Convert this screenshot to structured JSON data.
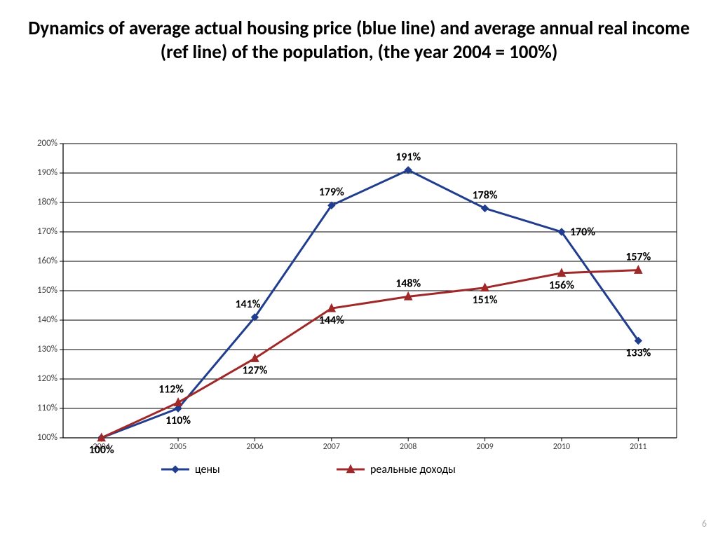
{
  "title": "Dynamics of average actual housing price (blue line) and average annual real income (ref line) of the population, (the year 2004 = 100%)",
  "page_number": "6",
  "chart": {
    "type": "line",
    "background_color": "#ffffff",
    "grid_color": "#000000",
    "axis_color": "#000000",
    "font_family": "Calibri, Arial, sans-serif",
    "title_fontsize": 27,
    "label_fontsize": 16,
    "tick_fontsize": 13,
    "xtick_fontsize": 12,
    "ylim": [
      100,
      200
    ],
    "ytick_step": 10,
    "y_format_suffix": "%",
    "ytick_labels": [
      "100%",
      "110%",
      "120%",
      "130%",
      "140%",
      "150%",
      "160%",
      "170%",
      "180%",
      "190%",
      "200%"
    ],
    "categories": [
      "2004",
      "2005",
      "2006",
      "2007",
      "2008",
      "2009",
      "2010",
      "2011"
    ],
    "series": [
      {
        "name": "цены",
        "color": "#203d8e",
        "line_width": 3,
        "marker": "diamond",
        "marker_size": 10,
        "values": [
          100,
          110,
          141,
          179,
          191,
          178,
          170,
          133
        ],
        "labels": [
          "100%",
          "110%",
          "141%",
          "179%",
          "191%",
          "178%",
          "170%",
          "133%"
        ],
        "label_pos": [
          "below",
          "below",
          "above-left",
          "above",
          "above",
          "above",
          "right",
          "below"
        ]
      },
      {
        "name": "реальные доходы",
        "color": "#a02828",
        "line_width": 3,
        "marker": "triangle",
        "marker_size": 11,
        "values": [
          100,
          112,
          127,
          144,
          148,
          151,
          156,
          157
        ],
        "labels": [
          "",
          "112%",
          "127%",
          "144%",
          "148%",
          "151%",
          "156%",
          "157%"
        ],
        "label_pos": [
          "",
          "above-left",
          "below",
          "below",
          "above",
          "below",
          "below",
          "above"
        ]
      }
    ],
    "legend": {
      "position": "bottom",
      "item_width": 250
    }
  }
}
